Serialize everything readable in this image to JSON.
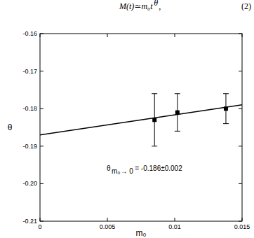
{
  "chart_data": {
    "type": "scatter",
    "equation": {
      "text": "M(t)≃m₀t",
      "superscript": "θ",
      "suffix": ",",
      "number": "(2)"
    },
    "x_label": "m₀",
    "y_label": "θ",
    "annotation": {
      "base": "θ",
      "subscript": "m₀→ 0",
      "text": " = -0.186±0.002"
    },
    "series": [
      {
        "type": "scatter",
        "marker": "square",
        "color": "#000000",
        "x": [
          0.0085,
          0.0102,
          0.0138
        ],
        "values": [
          -0.183,
          -0.181,
          -0.18
        ],
        "errors": [
          0.007,
          0.005,
          0.004
        ]
      },
      {
        "type": "line",
        "line_style": "solid",
        "color": "#000000",
        "x": [
          0,
          0.015
        ],
        "values": [
          -0.187,
          -0.179
        ]
      }
    ],
    "xlim": [
      0,
      0.015
    ],
    "ylim": [
      -0.21,
      -0.16
    ],
    "xticks": [
      0,
      0.005,
      0.01,
      0.015
    ],
    "yticks": [
      -0.21,
      {
        "value": -0.2,
        "label": "-0.20"
      },
      -0.19,
      -0.18,
      -0.17,
      -0.16
    ],
    "grid": false
  }
}
